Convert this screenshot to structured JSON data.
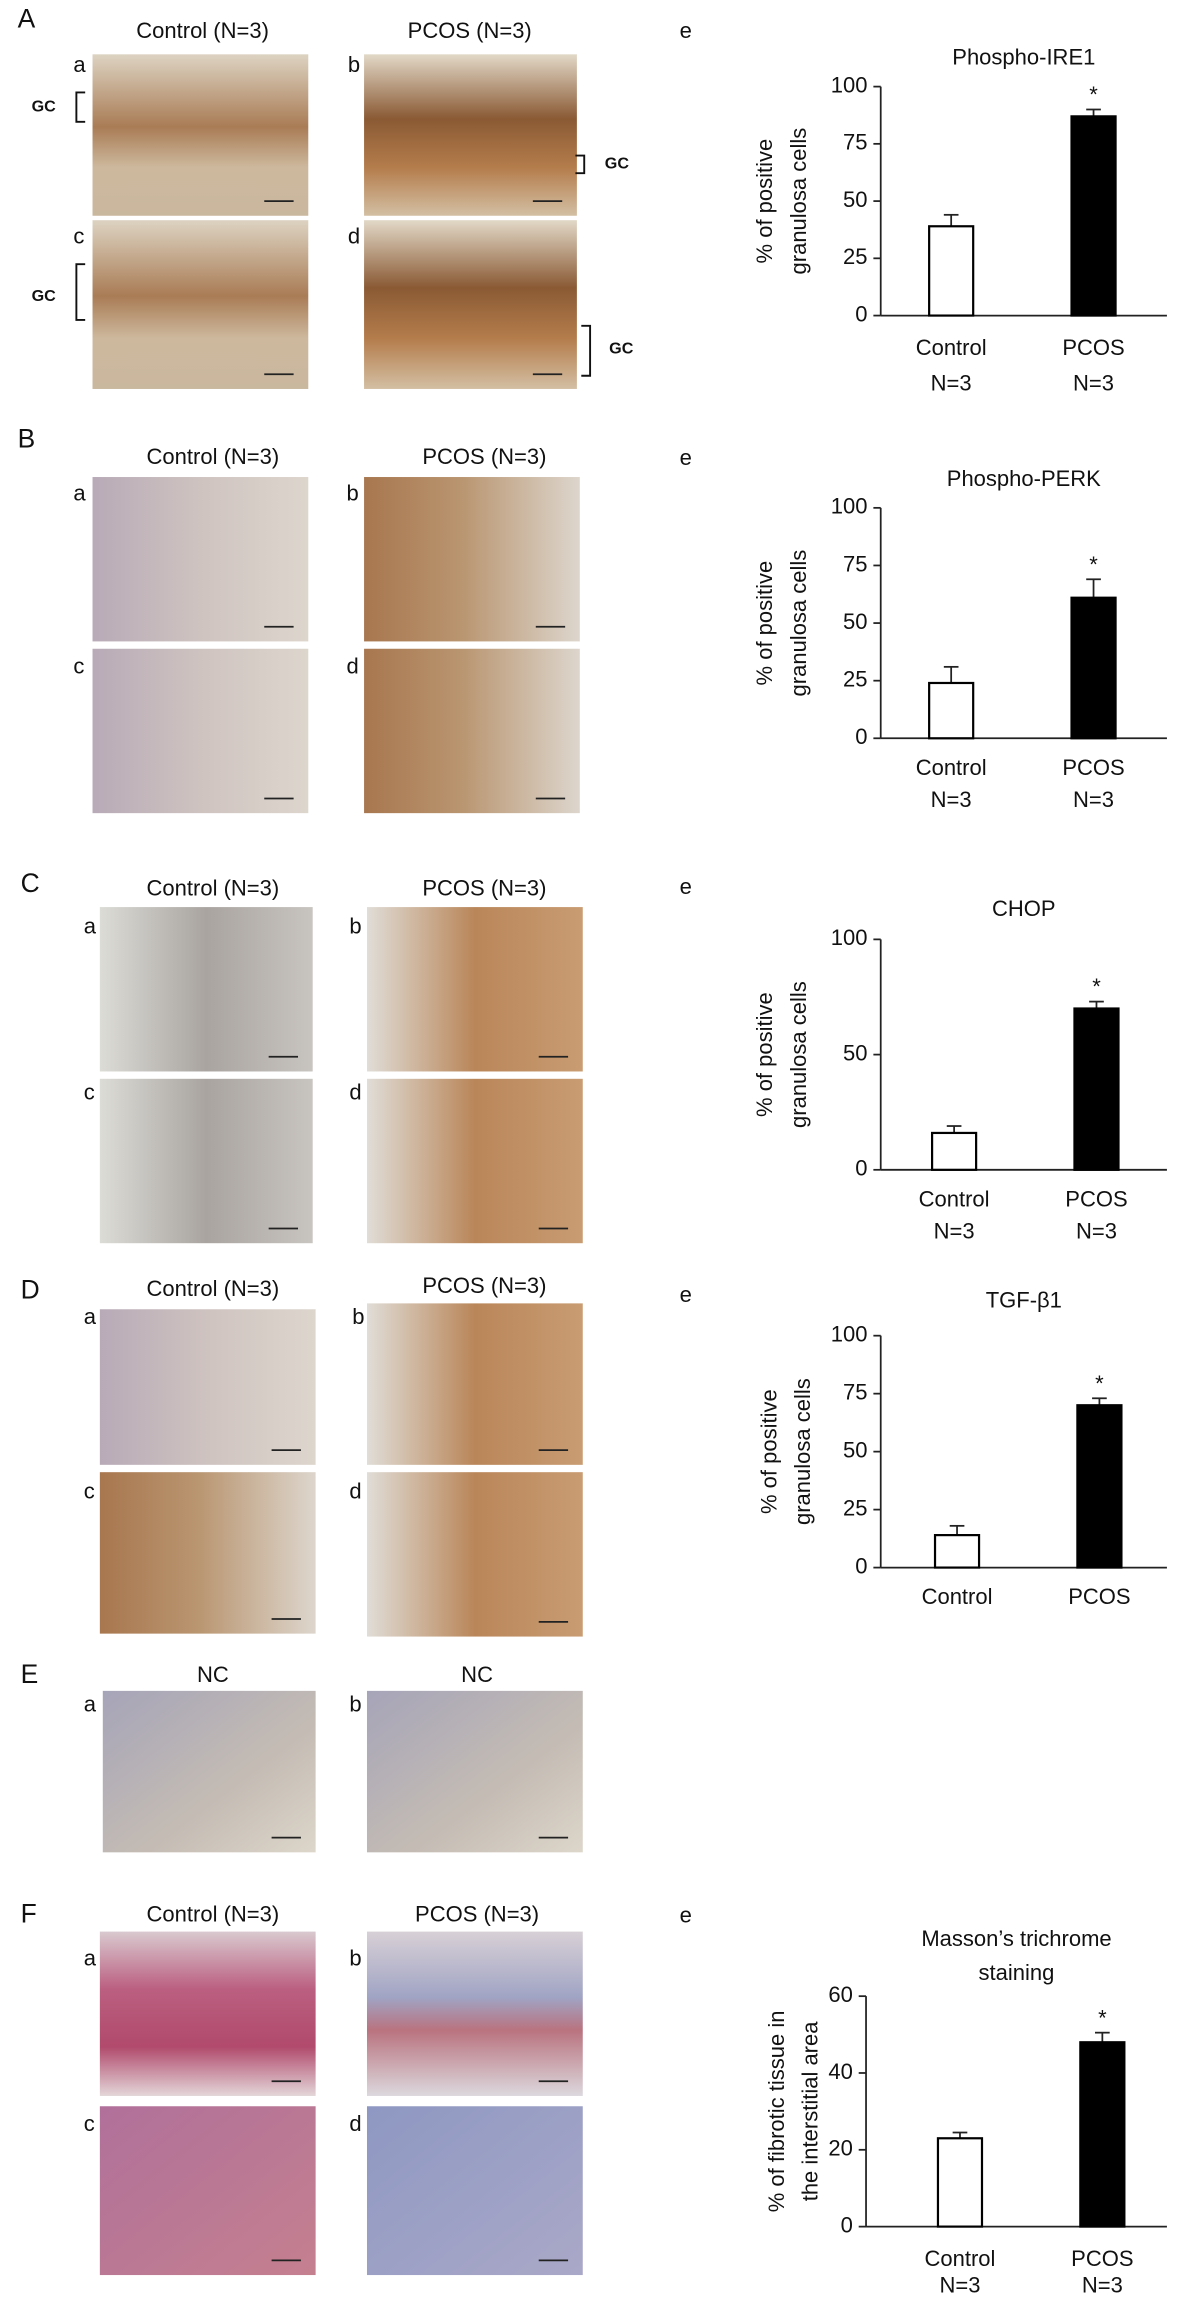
{
  "figure": {
    "panels": [
      {
        "letter": "A",
        "headers": [
          "Control (N=3)",
          "PCOS (N=3)"
        ],
        "sublabels": [
          "a",
          "b",
          "c",
          "d"
        ],
        "gc_labels": [
          "GC",
          "GC",
          "GC",
          "GC"
        ]
      },
      {
        "letter": "B",
        "headers": [
          "Control (N=3)",
          "PCOS (N=3)"
        ],
        "sublabels": [
          "a",
          "b",
          "c",
          "d"
        ]
      },
      {
        "letter": "C",
        "headers": [
          "Control (N=3)",
          "PCOS (N=3)"
        ],
        "sublabels": [
          "a",
          "b",
          "c",
          "d"
        ]
      },
      {
        "letter": "D",
        "headers": [
          "Control (N=3)",
          "PCOS (N=3)"
        ],
        "sublabels": [
          "a",
          "b",
          "c",
          "d"
        ]
      },
      {
        "letter": "E",
        "headers": [
          "NC",
          "NC"
        ],
        "sublabels": [
          "a",
          "b"
        ]
      },
      {
        "letter": "F",
        "headers": [
          "Control (N=3)",
          "PCOS (N=3)"
        ],
        "sublabels": [
          "a",
          "b",
          "c",
          "d"
        ]
      }
    ]
  },
  "chart_data": [
    {
      "type": "bar",
      "panel_label": "e",
      "title": [
        "Phospho-IRE1"
      ],
      "ylabel": [
        "% of positive",
        "granulosa cells"
      ],
      "categories": [
        "Control",
        "PCOS"
      ],
      "n_labels": [
        "N=3",
        "N=3"
      ],
      "values": [
        39,
        87
      ],
      "errors": [
        5,
        3
      ],
      "colors": [
        "#ffffff",
        "#000000"
      ],
      "significance": [
        null,
        "*"
      ],
      "ylim": [
        0,
        100
      ],
      "yticks": [
        0,
        25,
        50,
        75,
        100
      ]
    },
    {
      "type": "bar",
      "panel_label": "e",
      "title": [
        "Phospho-PERK"
      ],
      "ylabel": [
        "% of positive",
        "granulosa cells"
      ],
      "categories": [
        "Control",
        "PCOS"
      ],
      "n_labels": [
        "N=3",
        "N=3"
      ],
      "values": [
        24,
        61
      ],
      "errors": [
        7,
        8
      ],
      "colors": [
        "#ffffff",
        "#000000"
      ],
      "significance": [
        null,
        "*"
      ],
      "ylim": [
        0,
        100
      ],
      "yticks": [
        0,
        25,
        50,
        75,
        100
      ]
    },
    {
      "type": "bar",
      "panel_label": "e",
      "title": [
        "CHOP"
      ],
      "ylabel": [
        "% of positive",
        "granulosa cells"
      ],
      "categories": [
        "Control",
        "PCOS"
      ],
      "n_labels": [
        "N=3",
        "N=3"
      ],
      "values": [
        16,
        70
      ],
      "errors": [
        3,
        3
      ],
      "colors": [
        "#ffffff",
        "#000000"
      ],
      "significance": [
        null,
        "*"
      ],
      "ylim": [
        0,
        100
      ],
      "yticks": [
        0,
        50,
        100
      ]
    },
    {
      "type": "bar",
      "panel_label": "e",
      "title": [
        "TGF-β1"
      ],
      "ylabel": [
        "% of positive",
        "granulosa cells"
      ],
      "categories": [
        "Control",
        "PCOS"
      ],
      "values": [
        14,
        70
      ],
      "errors": [
        4,
        3
      ],
      "colors": [
        "#ffffff",
        "#000000"
      ],
      "significance": [
        null,
        "*"
      ],
      "ylim": [
        0,
        100
      ],
      "yticks": [
        0,
        25,
        50,
        75,
        100
      ]
    },
    {
      "type": "bar",
      "panel_label": "e",
      "title": [
        "Masson’s trichrome",
        "staining"
      ],
      "ylabel": [
        "% of fibrotic tissue in",
        "the interstitial area"
      ],
      "categories": [
        "Control",
        "PCOS"
      ],
      "n_labels": [
        "N=3",
        "N=3"
      ],
      "values": [
        23,
        48
      ],
      "errors": [
        1.5,
        2.5
      ],
      "colors": [
        "#ffffff",
        "#000000"
      ],
      "significance": [
        null,
        "*"
      ],
      "ylim": [
        0,
        60
      ],
      "yticks": [
        0,
        20,
        40,
        60
      ]
    }
  ]
}
